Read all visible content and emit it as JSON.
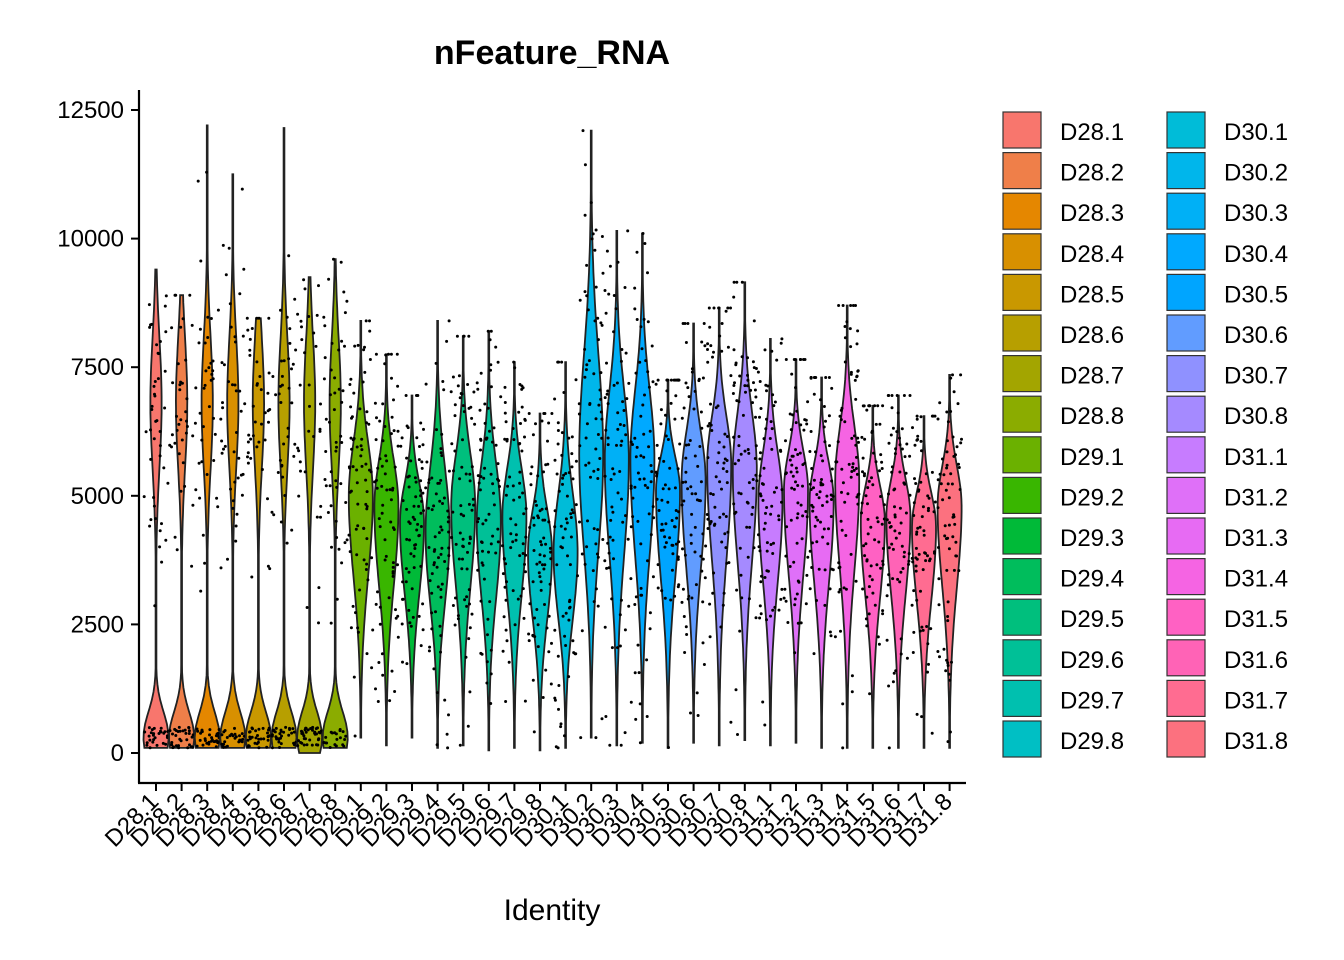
{
  "chart_data": {
    "type": "violin",
    "title": "nFeature_RNA",
    "xlabel": "Identity",
    "ylabel": "",
    "ylim": [
      -600,
      12800
    ],
    "yticks": [
      0,
      2500,
      5000,
      7500,
      10000,
      12500
    ],
    "ytick_labels": [
      "0",
      "2500",
      "5000",
      "7500",
      "10000",
      "12500"
    ],
    "legend_position": "right",
    "legend_columns": 2,
    "categories": [
      "D28.1",
      "D28.2",
      "D28.3",
      "D28.4",
      "D28.5",
      "D28.6",
      "D28.7",
      "D28.8",
      "D29.1",
      "D29.2",
      "D29.3",
      "D29.4",
      "D29.5",
      "D29.6",
      "D29.7",
      "D29.8",
      "D30.1",
      "D30.2",
      "D30.3",
      "D30.4",
      "D30.5",
      "D30.6",
      "D30.7",
      "D30.8",
      "D31.1",
      "D31.2",
      "D31.3",
      "D31.4",
      "D31.5",
      "D31.6",
      "D31.7",
      "D31.8"
    ],
    "colors": [
      "#F8766D",
      "#EF7F49",
      "#E58700",
      "#D89000",
      "#C99800",
      "#B79F00",
      "#A3A500",
      "#8BAC00",
      "#6BB100",
      "#39B600",
      "#00BA38",
      "#00BD5C",
      "#00BF7D",
      "#00C097",
      "#00C0AF",
      "#00BFC4",
      "#00BCD8",
      "#00B6EB",
      "#00B0F6",
      "#00A9FF",
      "#00A5FF",
      "#619CFF",
      "#8F91FF",
      "#A58AFF",
      "#C77CFF",
      "#DF70F8",
      "#E76BF3",
      "#F564E3",
      "#FF61C3",
      "#FF63B6",
      "#FF6C91",
      "#FC717F"
    ],
    "series": [
      {
        "name": "D28.1",
        "min": 100,
        "max": 9400,
        "mode": "bimodal",
        "jitter_note": "cells mostly near 0 plus high cluster ~7000"
      },
      {
        "name": "D28.2",
        "min": 100,
        "max": 8900,
        "mode": "bimodal"
      },
      {
        "name": "D28.3",
        "min": 100,
        "max": 12200,
        "mode": "bimodal"
      },
      {
        "name": "D28.4",
        "min": 100,
        "max": 11250,
        "mode": "bimodal"
      },
      {
        "name": "D28.5",
        "min": 100,
        "max": 8450,
        "mode": "bimodal"
      },
      {
        "name": "D28.6",
        "min": 100,
        "max": 12150,
        "mode": "bimodal"
      },
      {
        "name": "D28.7",
        "min": 0,
        "max": 9250,
        "mode": "bimodal"
      },
      {
        "name": "D28.8",
        "min": 100,
        "max": 9600,
        "mode": "bimodal"
      },
      {
        "name": "D29.1",
        "min": 300,
        "max": 8400,
        "median": 5000
      },
      {
        "name": "D29.2",
        "min": 150,
        "max": 7750,
        "median": 4800
      },
      {
        "name": "D29.3",
        "min": 300,
        "max": 6950,
        "median": 4500
      },
      {
        "name": "D29.4",
        "min": 100,
        "max": 8400,
        "median": 4300
      },
      {
        "name": "D29.5",
        "min": 150,
        "max": 8100,
        "median": 4800
      },
      {
        "name": "D29.6",
        "min": 50,
        "max": 8200,
        "median": 4500
      },
      {
        "name": "D29.7",
        "min": 100,
        "max": 7600,
        "median": 4600
      },
      {
        "name": "D29.8",
        "min": 50,
        "max": 6600,
        "median": 3900
      },
      {
        "name": "D30.1",
        "min": 100,
        "max": 7600,
        "median": 3900
      },
      {
        "name": "D30.2",
        "min": 300,
        "max": 12100,
        "median": 5800
      },
      {
        "name": "D30.3",
        "min": 150,
        "max": 10150,
        "median": 5700
      },
      {
        "name": "D30.4",
        "min": 200,
        "max": 10100,
        "median": 5700
      },
      {
        "name": "D30.5",
        "min": 100,
        "max": 7250,
        "median": 5100
      },
      {
        "name": "D30.6",
        "min": 200,
        "max": 8350,
        "median": 5300
      },
      {
        "name": "D30.7",
        "min": 150,
        "max": 8650,
        "median": 5600
      },
      {
        "name": "D30.8",
        "min": 250,
        "max": 9150,
        "median": 5500
      },
      {
        "name": "D31.1",
        "min": 150,
        "max": 8050,
        "median": 4900
      },
      {
        "name": "D31.2",
        "min": 200,
        "max": 7650,
        "median": 5100
      },
      {
        "name": "D31.3",
        "min": 100,
        "max": 7300,
        "median": 4900
      },
      {
        "name": "D31.4",
        "min": 100,
        "max": 8700,
        "median": 5300
      },
      {
        "name": "D31.5",
        "min": 100,
        "max": 6750,
        "median": 4500
      },
      {
        "name": "D31.6",
        "min": 100,
        "max": 6950,
        "median": 4600
      },
      {
        "name": "D31.7",
        "min": 100,
        "max": 6550,
        "median": 4400
      },
      {
        "name": "D31.8",
        "min": 100,
        "max": 7350,
        "median": 4800
      }
    ]
  }
}
